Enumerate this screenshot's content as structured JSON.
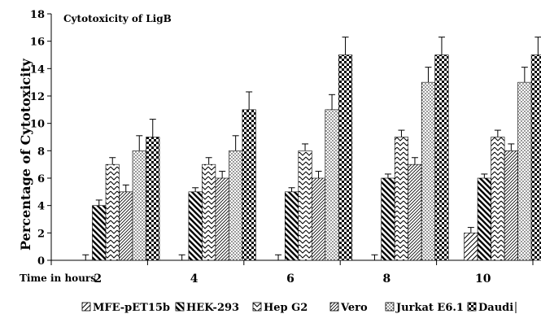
{
  "chart_data": {
    "type": "bar",
    "title": "Cytotoxicity of  LigB",
    "xlabel": "Time in hours",
    "ylabel": "Percentage of Cytotoxicity",
    "ylim": [
      0,
      18
    ],
    "yticks": [
      0,
      2,
      4,
      6,
      8,
      10,
      12,
      14,
      16,
      18
    ],
    "categories": [
      "2",
      "4",
      "6",
      "8",
      "10"
    ],
    "legend_position": "bottom",
    "series": [
      {
        "name": "MFE-pET15b",
        "values": [
          0,
          0,
          0,
          0,
          2
        ],
        "errors": [
          0.4,
          0.4,
          0.4,
          0.4,
          0.4
        ],
        "pattern": "diag-right"
      },
      {
        "name": "HEK-293",
        "values": [
          4,
          5,
          5,
          6,
          6
        ],
        "errors": [
          0.4,
          0.3,
          0.3,
          0.3,
          0.3
        ],
        "pattern": "diag-thick"
      },
      {
        "name": "Hep G2",
        "values": [
          7,
          7,
          8,
          9,
          9
        ],
        "errors": [
          0.5,
          0.5,
          0.5,
          0.5,
          0.5
        ],
        "pattern": "zigzag"
      },
      {
        "name": "Vero",
        "values": [
          5,
          6,
          6,
          7,
          8
        ],
        "errors": [
          0.5,
          0.5,
          0.5,
          0.5,
          0.5
        ],
        "pattern": "diag-thin"
      },
      {
        "name": "Jurkat E6.1",
        "values": [
          8,
          8,
          11,
          13,
          13
        ],
        "errors": [
          1.1,
          1.1,
          1.1,
          1.1,
          1.1
        ],
        "pattern": "dots"
      },
      {
        "name": "Daudi",
        "values": [
          9,
          11,
          15,
          15,
          15
        ],
        "errors": [
          1.3,
          1.3,
          1.3,
          1.3,
          1.3
        ],
        "pattern": "checker"
      }
    ]
  }
}
